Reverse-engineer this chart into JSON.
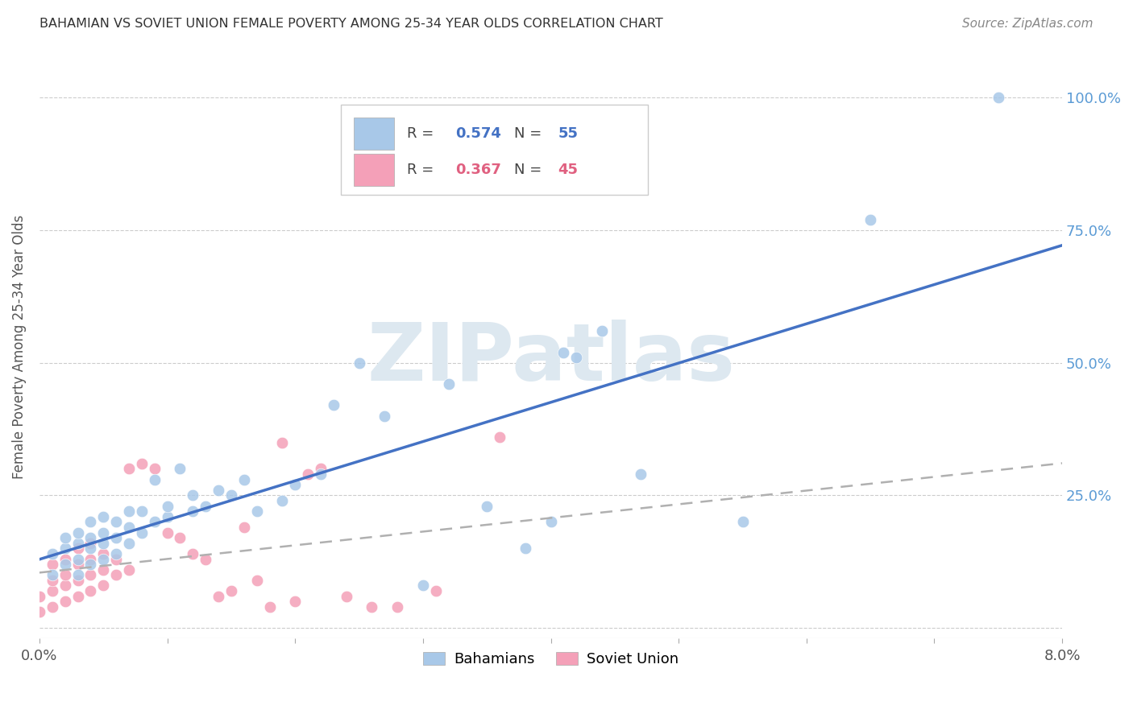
{
  "title": "BAHAMIAN VS SOVIET UNION FEMALE POVERTY AMONG 25-34 YEAR OLDS CORRELATION CHART",
  "source": "Source: ZipAtlas.com",
  "ylabel": "Female Poverty Among 25-34 Year Olds",
  "xlim": [
    0.0,
    0.08
  ],
  "ylim": [
    -0.02,
    1.08
  ],
  "ytick_vals": [
    0.0,
    0.25,
    0.5,
    0.75,
    1.0
  ],
  "ytick_labels_right": [
    "",
    "25.0%",
    "50.0%",
    "75.0%",
    "100.0%"
  ],
  "xticks": [
    0.0,
    0.01,
    0.02,
    0.03,
    0.04,
    0.05,
    0.06,
    0.07,
    0.08
  ],
  "legend_bahamian_R": "0.574",
  "legend_bahamian_N": "55",
  "legend_soviet_R": "0.367",
  "legend_soviet_N": "45",
  "bahamian_color": "#a8c8e8",
  "soviet_color": "#f4a0b8",
  "bahamian_line_color": "#4472c4",
  "soviet_line_color": "#b0b0b0",
  "watermark_color": "#dde8f0",
  "background_color": "#ffffff",
  "bahamian_x": [
    0.001,
    0.001,
    0.002,
    0.002,
    0.002,
    0.003,
    0.003,
    0.003,
    0.003,
    0.004,
    0.004,
    0.004,
    0.004,
    0.005,
    0.005,
    0.005,
    0.005,
    0.006,
    0.006,
    0.006,
    0.007,
    0.007,
    0.007,
    0.008,
    0.008,
    0.009,
    0.009,
    0.01,
    0.01,
    0.011,
    0.012,
    0.012,
    0.013,
    0.014,
    0.015,
    0.016,
    0.017,
    0.019,
    0.02,
    0.022,
    0.023,
    0.025,
    0.027,
    0.03,
    0.032,
    0.035,
    0.038,
    0.04,
    0.041,
    0.042,
    0.044,
    0.047,
    0.055,
    0.065,
    0.075
  ],
  "bahamian_y": [
    0.1,
    0.14,
    0.12,
    0.15,
    0.17,
    0.1,
    0.13,
    0.16,
    0.18,
    0.12,
    0.15,
    0.17,
    0.2,
    0.13,
    0.16,
    0.18,
    0.21,
    0.14,
    0.17,
    0.2,
    0.16,
    0.19,
    0.22,
    0.18,
    0.22,
    0.2,
    0.28,
    0.21,
    0.23,
    0.3,
    0.22,
    0.25,
    0.23,
    0.26,
    0.25,
    0.28,
    0.22,
    0.24,
    0.27,
    0.29,
    0.42,
    0.5,
    0.4,
    0.08,
    0.46,
    0.23,
    0.15,
    0.2,
    0.52,
    0.51,
    0.56,
    0.29,
    0.2,
    0.77,
    1.0
  ],
  "soviet_x": [
    0.0,
    0.0,
    0.001,
    0.001,
    0.001,
    0.001,
    0.002,
    0.002,
    0.002,
    0.002,
    0.003,
    0.003,
    0.003,
    0.003,
    0.004,
    0.004,
    0.004,
    0.004,
    0.005,
    0.005,
    0.005,
    0.006,
    0.006,
    0.007,
    0.007,
    0.008,
    0.009,
    0.01,
    0.011,
    0.012,
    0.013,
    0.014,
    0.015,
    0.016,
    0.017,
    0.018,
    0.019,
    0.02,
    0.021,
    0.022,
    0.024,
    0.026,
    0.028,
    0.031,
    0.036
  ],
  "soviet_y": [
    0.03,
    0.06,
    0.04,
    0.07,
    0.09,
    0.12,
    0.05,
    0.08,
    0.1,
    0.13,
    0.06,
    0.09,
    0.12,
    0.15,
    0.07,
    0.1,
    0.13,
    0.16,
    0.08,
    0.11,
    0.14,
    0.1,
    0.13,
    0.11,
    0.3,
    0.31,
    0.3,
    0.18,
    0.17,
    0.14,
    0.13,
    0.06,
    0.07,
    0.19,
    0.09,
    0.04,
    0.35,
    0.05,
    0.29,
    0.3,
    0.06,
    0.04,
    0.04,
    0.07,
    0.36
  ]
}
